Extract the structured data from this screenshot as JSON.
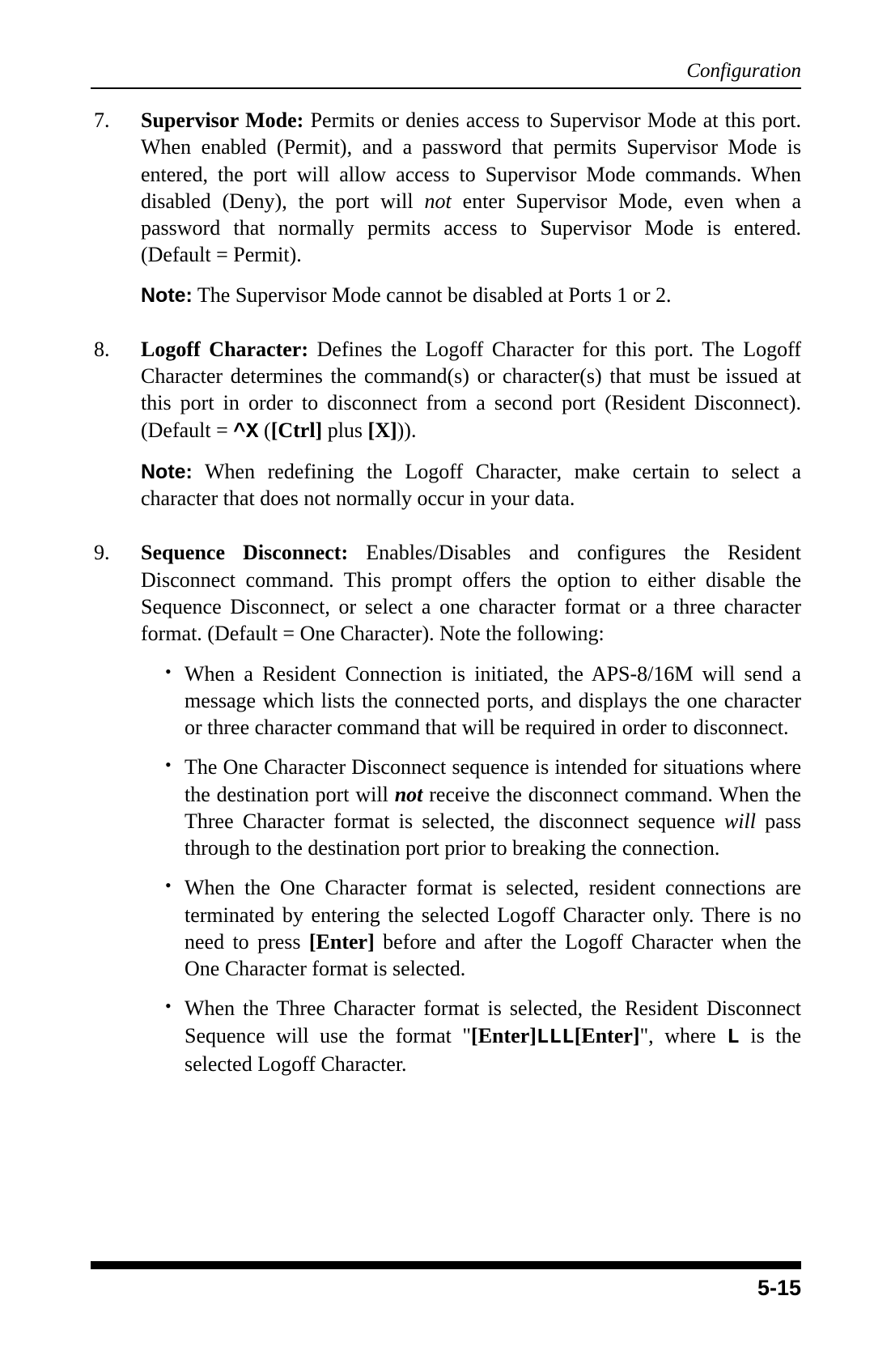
{
  "header": {
    "section": "Configuration"
  },
  "items": [
    {
      "num": "7.",
      "lead": "Supervisor Mode:",
      "text1a": "  Permits or denies access to Supervisor Mode at this port.  When enabled (Permit), and a password that permits Supervisor Mode is entered, the port will allow access to Supervisor Mode commands.  When disabled (Deny), the port will ",
      "not": "not",
      "text1b": " enter Supervisor Mode, even when a password that normally permits access to Supervisor Mode is entered.  (Default = Permit).",
      "noteLabel": "Note:",
      "noteText": "  The Supervisor Mode cannot be disabled at Ports 1 or 2."
    },
    {
      "num": "8.",
      "lead": "Logoff Character:",
      "text1a": "  Defines the Logoff Character for this port.  The Logoff Character determines the command(s) or character(s)  that must be issued at this port in order to disconnect from a second port (Resident Disconnect).  (Default = ",
      "code1": "^X",
      "text1b": " (",
      "ctrl": "[Ctrl]",
      "text1c": " plus ",
      "xkey": "[X]",
      "text1d": ")).",
      "noteLabel": "Note:",
      "noteText": "  When redefining the Logoff Character, make certain to select a character that does not normally occur in your data."
    },
    {
      "num": "9.",
      "lead": "Sequence Disconnect:",
      "text1": "  Enables/Disables and configures the Resident Disconnect command.  This prompt offers the option to either disable the Sequence Disconnect, or select a one character format or a three character format.  (Default = One Character).  Note the following:",
      "bullets": {
        "b1": "When a Resident Connection is initiated, the APS-8/16M will send a message which lists the connected ports, and displays the one character or three character command that will be required in order to disconnect.",
        "b2a": "The One Character Disconnect sequence is intended for situations where the destination port will ",
        "b2not": "not",
        "b2b": " receive the disconnect command.  When the Three Character format is selected, the disconnect sequence ",
        "b2will": "will",
        "b2c": " pass through to the destination port prior to breaking the connection.",
        "b3a": "When the One Character format is selected, resident connections are terminated by entering the selected Logoff Character only.  There is no need to press ",
        "b3enter": "[Enter]",
        "b3b": " before and after the Logoff Character when the One Character format is selected.",
        "b4a": "When the Three Character format is selected, the Resident Disconnect Sequence will use the format \"",
        "b4enter1": "[Enter]",
        "b4lll": "LLL",
        "b4enter2": "[Enter]",
        "b4b": "\", where ",
        "b4l": "L",
        "b4c": " is the selected Logoff Character."
      }
    }
  ],
  "footer": {
    "page": "5-15"
  }
}
